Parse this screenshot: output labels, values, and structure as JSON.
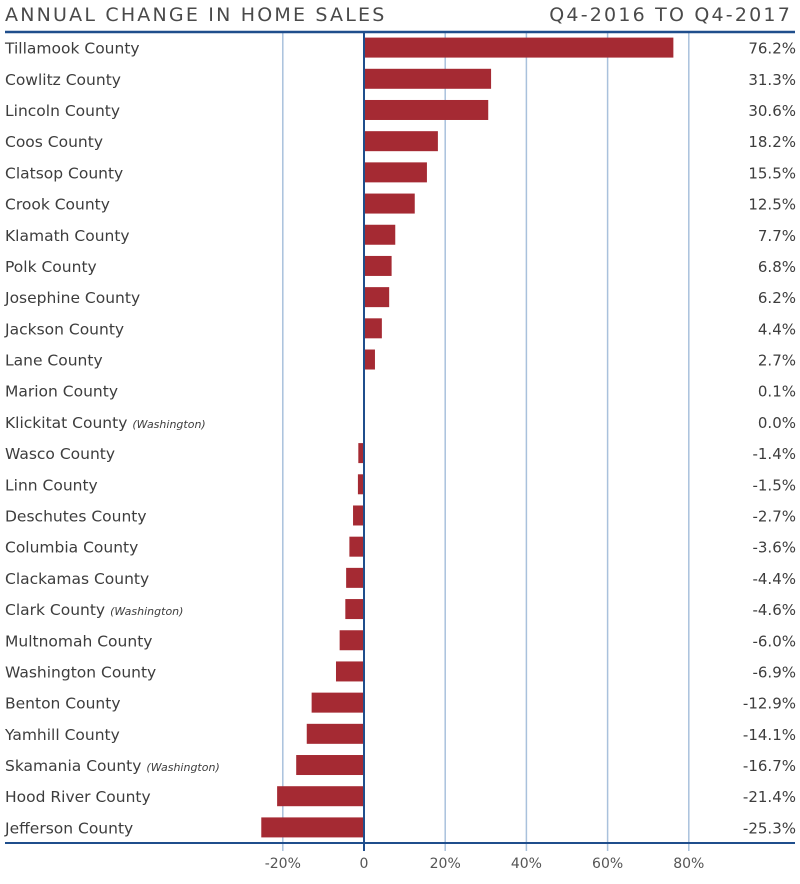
{
  "header": {
    "title": "ANNUAL CHANGE IN HOME SALES",
    "period": "Q4-2016 TO Q4-2017"
  },
  "colors": {
    "bar": "#a52a33",
    "axis": "#1f4e8c",
    "grid": "#a9c1dc"
  },
  "chart_data": {
    "type": "bar",
    "orientation": "horizontal",
    "title": "Annual Change in Home Sales",
    "subtitle": "Q4-2016 to Q4-2017",
    "xlabel": "",
    "ylabel": "",
    "xlim": [
      -25.3,
      92
    ],
    "grid": true,
    "x_ticks": [
      -20,
      0,
      20,
      40,
      60,
      80
    ],
    "x_tick_labels": [
      "-20%",
      "0",
      "20%",
      "40%",
      "60%",
      "80%"
    ],
    "categories": [
      {
        "name": "Tillamook County",
        "note": ""
      },
      {
        "name": "Cowlitz County",
        "note": ""
      },
      {
        "name": "Lincoln County",
        "note": ""
      },
      {
        "name": "Coos County",
        "note": ""
      },
      {
        "name": "Clatsop County",
        "note": ""
      },
      {
        "name": "Crook County",
        "note": ""
      },
      {
        "name": "Klamath County",
        "note": ""
      },
      {
        "name": "Polk County",
        "note": ""
      },
      {
        "name": "Josephine County",
        "note": ""
      },
      {
        "name": "Jackson County",
        "note": ""
      },
      {
        "name": "Lane County",
        "note": ""
      },
      {
        "name": "Marion County",
        "note": ""
      },
      {
        "name": "Klickitat County",
        "note": "(Washington)"
      },
      {
        "name": "Wasco County",
        "note": ""
      },
      {
        "name": "Linn County",
        "note": ""
      },
      {
        "name": "Deschutes County",
        "note": ""
      },
      {
        "name": "Columbia County",
        "note": ""
      },
      {
        "name": "Clackamas County",
        "note": ""
      },
      {
        "name": "Clark County",
        "note": "(Washington)"
      },
      {
        "name": "Multnomah County",
        "note": ""
      },
      {
        "name": "Washington County",
        "note": ""
      },
      {
        "name": "Benton County",
        "note": ""
      },
      {
        "name": "Yamhill County",
        "note": ""
      },
      {
        "name": "Skamania County",
        "note": "(Washington)"
      },
      {
        "name": "Hood River County",
        "note": ""
      },
      {
        "name": "Jefferson County",
        "note": ""
      }
    ],
    "values": [
      76.2,
      31.3,
      30.6,
      18.2,
      15.5,
      12.5,
      7.7,
      6.8,
      6.2,
      4.4,
      2.7,
      0.1,
      0.0,
      -1.4,
      -1.5,
      -2.7,
      -3.6,
      -4.4,
      -4.6,
      -6.0,
      -6.9,
      -12.9,
      -14.1,
      -16.7,
      -21.4,
      -25.3
    ],
    "value_labels": [
      "76.2%",
      "31.3%",
      "30.6%",
      "18.2%",
      "15.5%",
      "12.5%",
      "7.7%",
      "6.8%",
      "6.2%",
      "4.4%",
      "2.7%",
      "0.1%",
      "0.0%",
      "-1.4%",
      "-1.5%",
      "-2.7%",
      "-3.6%",
      "-4.4%",
      "-4.6%",
      "-6.0%",
      "-6.9%",
      "-12.9%",
      "-14.1%",
      "-16.7%",
      "-21.4%",
      "-25.3%"
    ]
  }
}
